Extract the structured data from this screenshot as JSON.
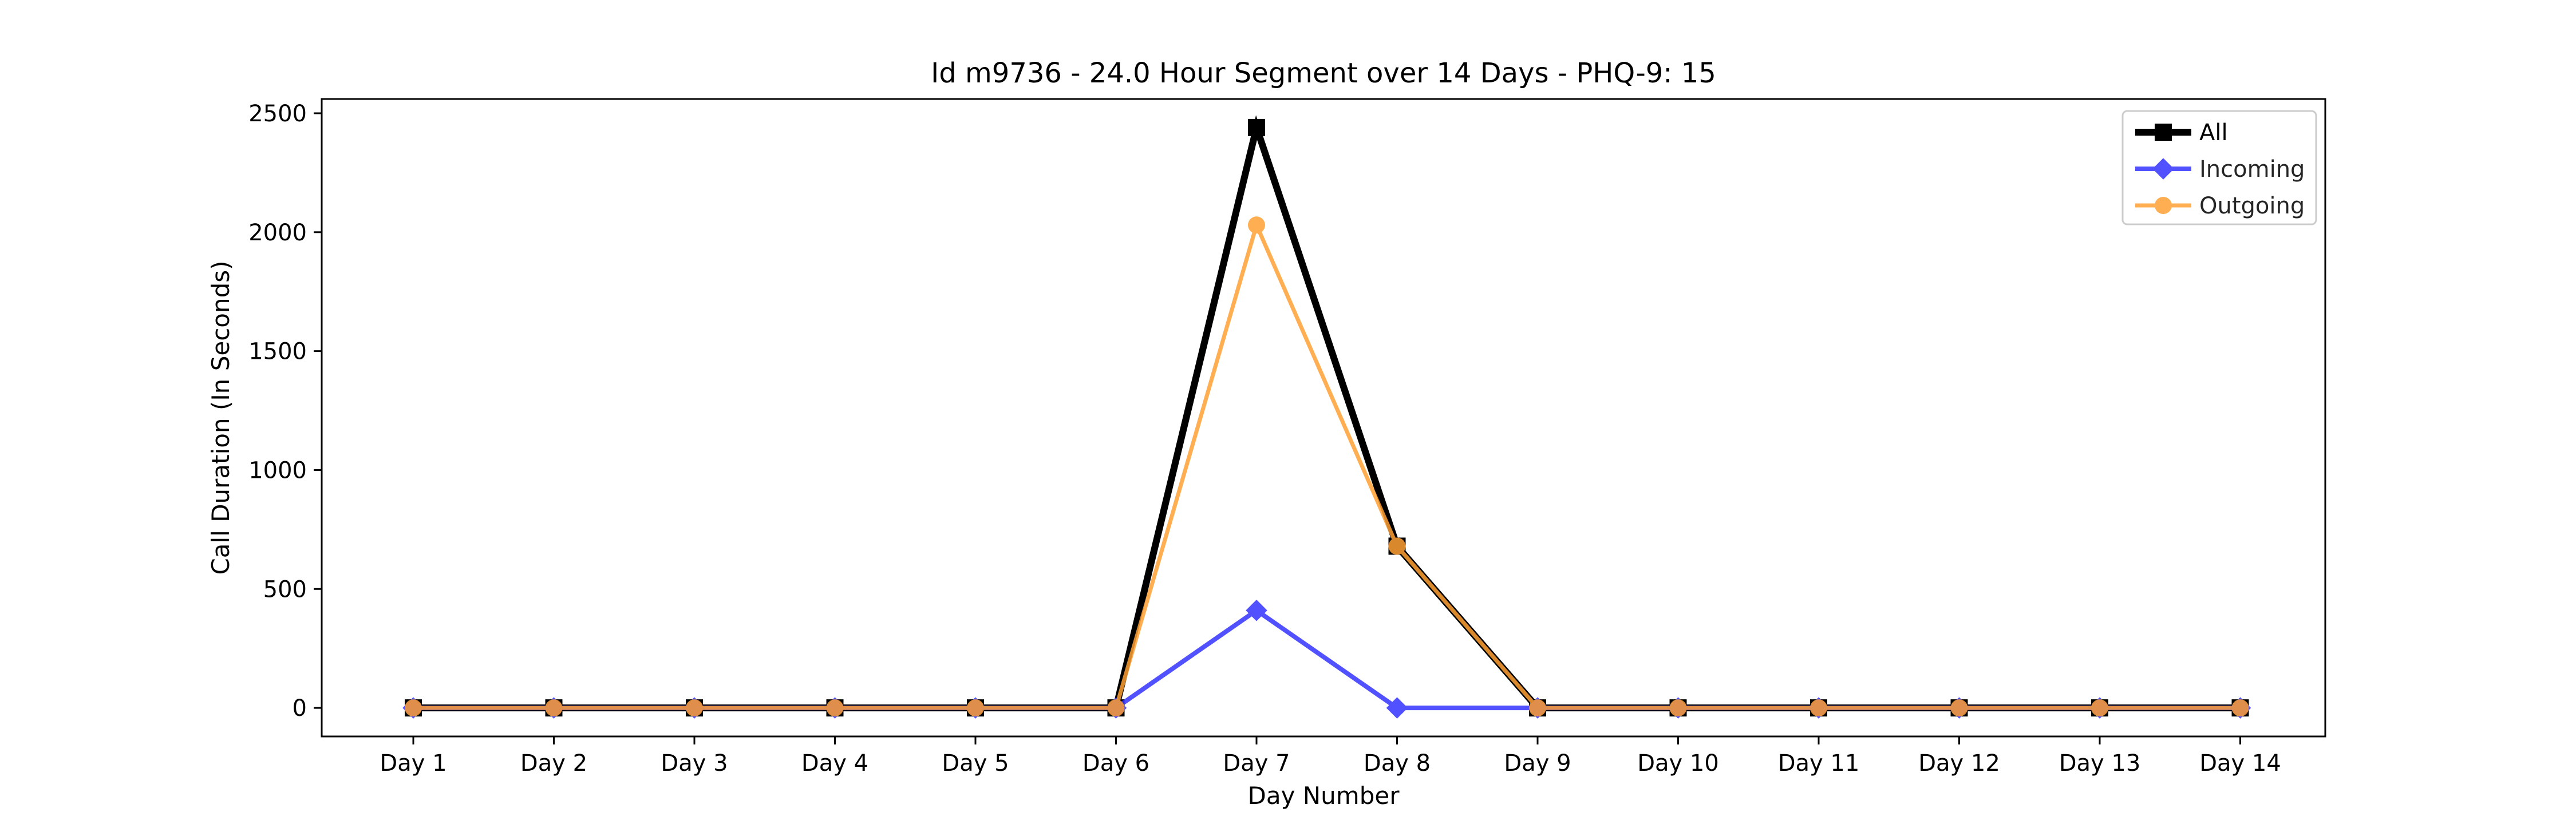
{
  "chart_data": {
    "type": "line",
    "title": "Id m9736 - 24.0 Hour Segment over 14 Days - PHQ-9: 15",
    "xlabel": "Day Number",
    "ylabel": "Call Duration (In Seconds)",
    "categories": [
      "Day 1",
      "Day 2",
      "Day 3",
      "Day 4",
      "Day 5",
      "Day 6",
      "Day 7",
      "Day 8",
      "Day 9",
      "Day 10",
      "Day 11",
      "Day 12",
      "Day 13",
      "Day 14"
    ],
    "ylim": [
      -120,
      2560
    ],
    "yticks": [
      0,
      500,
      1000,
      1500,
      2000,
      2500
    ],
    "grid": false,
    "legend_position": "top-right",
    "series": [
      {
        "name": "All",
        "color": "#000000",
        "marker": "square",
        "values": [
          0,
          0,
          0,
          0,
          0,
          0,
          2440,
          680,
          0,
          0,
          0,
          0,
          0,
          0
        ]
      },
      {
        "name": "Incoming",
        "color": "#3333ff",
        "marker": "diamond",
        "values": [
          0,
          0,
          0,
          0,
          0,
          0,
          410,
          0,
          0,
          0,
          0,
          0,
          0,
          0
        ]
      },
      {
        "name": "Outgoing",
        "color": "#ffa033",
        "marker": "circle",
        "values": [
          0,
          0,
          0,
          0,
          0,
          0,
          2030,
          680,
          0,
          0,
          0,
          0,
          0,
          0
        ]
      }
    ]
  }
}
